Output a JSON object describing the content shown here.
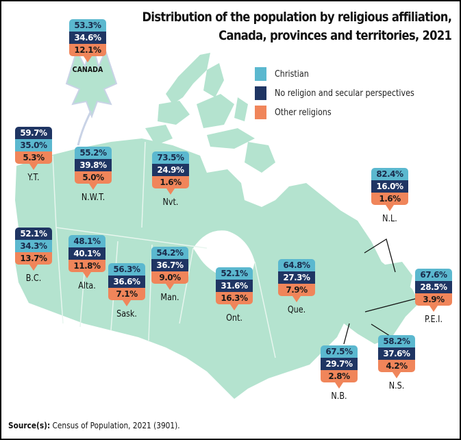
{
  "chart_data": {
    "type": "table",
    "title": "Distribution of the population by religious affiliation, Canada, provinces and territories, 2021",
    "title_lines": [
      "Distribution of the population by religious affiliation,",
      "Canada, provinces and territories, 2021"
    ],
    "unit": "%",
    "legend_placement": "top-right",
    "series": [
      {
        "key": "christian",
        "name": "Christian",
        "color": "#5bb8cf"
      },
      {
        "key": "none",
        "name": "No religion and secular perspectives",
        "color": "#1f3563"
      },
      {
        "key": "other",
        "name": "Other religions",
        "color": "#f0855a"
      }
    ],
    "regions": [
      {
        "id": "canada",
        "label": "CANADA",
        "christian": 53.3,
        "none": 34.6,
        "other": 12.1,
        "order": [
          "christian",
          "none",
          "other"
        ]
      },
      {
        "id": "yt",
        "label": "Y.T.",
        "christian": 35.0,
        "none": 59.7,
        "other": 5.3,
        "order": [
          "none",
          "christian",
          "other"
        ]
      },
      {
        "id": "nwt",
        "label": "N.W.T.",
        "christian": 55.2,
        "none": 39.8,
        "other": 5.0,
        "order": [
          "christian",
          "none",
          "other"
        ]
      },
      {
        "id": "nvt",
        "label": "Nvt.",
        "christian": 73.5,
        "none": 24.9,
        "other": 1.6,
        "order": [
          "christian",
          "none",
          "other"
        ]
      },
      {
        "id": "nl",
        "label": "N.L.",
        "christian": 82.4,
        "none": 16.0,
        "other": 1.6,
        "order": [
          "christian",
          "none",
          "other"
        ]
      },
      {
        "id": "bc",
        "label": "B.C.",
        "christian": 34.3,
        "none": 52.1,
        "other": 13.7,
        "order": [
          "none",
          "christian",
          "other"
        ]
      },
      {
        "id": "alta",
        "label": "Alta.",
        "christian": 48.1,
        "none": 40.1,
        "other": 11.8,
        "order": [
          "christian",
          "none",
          "other"
        ]
      },
      {
        "id": "sask",
        "label": "Sask.",
        "christian": 56.3,
        "none": 36.6,
        "other": 7.1,
        "order": [
          "christian",
          "none",
          "other"
        ]
      },
      {
        "id": "man",
        "label": "Man.",
        "christian": 54.2,
        "none": 36.7,
        "other": 9.0,
        "order": [
          "christian",
          "none",
          "other"
        ]
      },
      {
        "id": "ont",
        "label": "Ont.",
        "christian": 52.1,
        "none": 31.6,
        "other": 16.3,
        "order": [
          "christian",
          "none",
          "other"
        ]
      },
      {
        "id": "que",
        "label": "Que.",
        "christian": 64.8,
        "none": 27.3,
        "other": 7.9,
        "order": [
          "christian",
          "none",
          "other"
        ]
      },
      {
        "id": "pei",
        "label": "P.E.I.",
        "christian": 67.6,
        "none": 28.5,
        "other": 3.9,
        "order": [
          "christian",
          "none",
          "other"
        ]
      },
      {
        "id": "nb",
        "label": "N.B.",
        "christian": 67.5,
        "none": 29.7,
        "other": 2.8,
        "order": [
          "christian",
          "none",
          "other"
        ]
      },
      {
        "id": "ns",
        "label": "N.S.",
        "christian": 58.2,
        "none": 37.6,
        "other": 4.2,
        "order": [
          "christian",
          "none",
          "other"
        ]
      }
    ]
  },
  "source": {
    "label": "Source(s):",
    "text": " Census of Population, 2021 (3901)."
  },
  "colors": {
    "land": "#b4e3cf",
    "border": "#e8f6ef",
    "maple": "#c9d3e6"
  }
}
